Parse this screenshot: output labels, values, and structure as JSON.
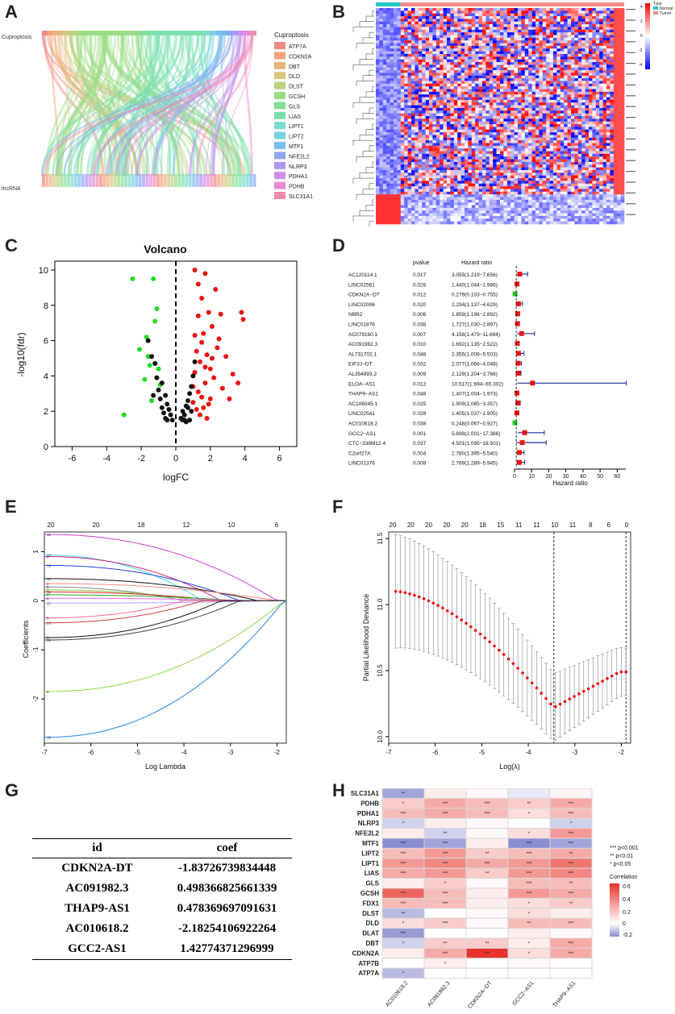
{
  "labels": {
    "A": "A",
    "B": "B",
    "C": "C",
    "D": "D",
    "E": "E",
    "F": "F",
    "G": "G",
    "H": "H"
  },
  "panelA": {
    "top_label": "Cuproptosis",
    "bottom_label": "lncRNA",
    "legend_title": "Cuproptosis",
    "genes": [
      "ATP7A",
      "CDKN2A",
      "DBT",
      "DLD",
      "DLST",
      "GCSH",
      "GLS",
      "LIAS",
      "LIPT1",
      "LIPT2",
      "MTF1",
      "NFE2L2",
      "NLRP3",
      "PDHA1",
      "PDHB",
      "SLC31A1"
    ],
    "colors": [
      "#f08a82",
      "#f3a17a",
      "#e9b47c",
      "#d8c57e",
      "#bdd281",
      "#9bdc86",
      "#83df95",
      "#7be0b0",
      "#7adcc9",
      "#78d0de",
      "#79bdee",
      "#8fa6f6",
      "#ad97f5",
      "#cf8de8",
      "#e88ad5",
      "#f18ab0"
    ]
  },
  "panelB": {
    "legend_title": "Type",
    "types": [
      "Normal",
      "Tumor"
    ],
    "type_colors": [
      "#22c7c9",
      "#f58c8c"
    ],
    "scale_ticks": [
      "4",
      "2",
      "0",
      "-2",
      "-4"
    ]
  },
  "panelC": {
    "chart_data": {
      "type": "scatter",
      "title": "Volcano",
      "xlabel": "logFC",
      "ylabel": "-log10(fdr)",
      "xlim": [
        -7,
        7
      ],
      "ylim": [
        0,
        10.5
      ],
      "x_ticks": [
        "-6",
        "-4",
        "-2",
        "0",
        "2",
        "4",
        "6"
      ],
      "y_ticks": [
        "0",
        "2",
        "4",
        "6",
        "8",
        "10"
      ],
      "series": [
        {
          "name": "down",
          "color": "#22dd22",
          "points": [
            [
              -3,
              1.8
            ],
            [
              -2.5,
              9.5
            ],
            [
              -2.1,
              5.5
            ],
            [
              -1.8,
              3.8
            ],
            [
              -1.7,
              6.2
            ],
            [
              -1.6,
              5.1
            ],
            [
              -1.5,
              4.6
            ],
            [
              -1.4,
              2.6
            ],
            [
              -1.3,
              9.5
            ],
            [
              -1.2,
              7.1
            ],
            [
              -1.1,
              7.8
            ],
            [
              -1.0,
              4.4
            ],
            [
              -0.9,
              3.5
            ]
          ]
        },
        {
          "name": "up",
          "color": "#ee1111",
          "points": [
            [
              1.1,
              10.0
            ],
            [
              1.3,
              9.2
            ],
            [
              1.5,
              8.4
            ],
            [
              1.7,
              9.8
            ],
            [
              1.9,
              7.6
            ],
            [
              2.1,
              6.8
            ],
            [
              2.3,
              8.9
            ],
            [
              2.5,
              6.1
            ],
            [
              1.2,
              5.4
            ],
            [
              1.4,
              4.8
            ],
            [
              1.6,
              6.4
            ],
            [
              1.8,
              5.2
            ],
            [
              2.0,
              4.4
            ],
            [
              2.2,
              3.9
            ],
            [
              2.4,
              5.6
            ],
            [
              1.0,
              3.4
            ],
            [
              1.1,
              4.2
            ],
            [
              1.3,
              3.1
            ],
            [
              1.5,
              2.8
            ],
            [
              1.7,
              3.6
            ],
            [
              1.9,
              2.4
            ],
            [
              1.2,
              2.1
            ],
            [
              1.4,
              1.8
            ],
            [
              1.6,
              2.2
            ],
            [
              1.8,
              1.6
            ],
            [
              2.0,
              2.7
            ],
            [
              1.0,
              2.5
            ],
            [
              2.7,
              3.3
            ],
            [
              3.1,
              2.7
            ],
            [
              3.6,
              3.6
            ],
            [
              3.9,
              7.2
            ],
            [
              2.9,
              5.1
            ],
            [
              3.3,
              4.1
            ],
            [
              2.6,
              7.5
            ],
            [
              3.8,
              7.6
            ],
            [
              1.1,
              6.3
            ],
            [
              1.3,
              7.4
            ],
            [
              1.5,
              5.9
            ],
            [
              1.7,
              4.5
            ],
            [
              2.1,
              5.0
            ]
          ]
        },
        {
          "name": "ns",
          "color": "#111111",
          "points": [
            [
              -1.0,
              3.2
            ],
            [
              -0.9,
              2.7
            ],
            [
              -0.8,
              2.2
            ],
            [
              -0.7,
              1.9
            ],
            [
              -0.6,
              1.6
            ],
            [
              -0.5,
              2.4
            ],
            [
              -0.4,
              2.1
            ],
            [
              -0.3,
              1.8
            ],
            [
              -0.2,
              1.5
            ],
            [
              -1.2,
              4.7
            ],
            [
              -1.1,
              3.9
            ],
            [
              -1.3,
              2.9
            ],
            [
              -0.8,
              3.6
            ],
            [
              -0.6,
              2.9
            ],
            [
              0.3,
              1.6
            ],
            [
              0.4,
              2.0
            ],
            [
              0.5,
              1.8
            ],
            [
              0.6,
              2.3
            ],
            [
              0.7,
              2.6
            ],
            [
              0.8,
              3.0
            ],
            [
              0.9,
              3.4
            ],
            [
              1.0,
              4.0
            ],
            [
              0.8,
              1.5
            ],
            [
              0.9,
              2.0
            ],
            [
              0.6,
              1.4
            ],
            [
              1.1,
              4.8
            ],
            [
              0.5,
              1.5
            ],
            [
              0.7,
              2.2
            ],
            [
              -1.4,
              5.1
            ],
            [
              -1.6,
              6.0
            ],
            [
              -0.5,
              1.5
            ],
            [
              0.4,
              1.5
            ]
          ]
        }
      ]
    }
  },
  "panelD": {
    "headers": {
      "pvalue": "pvalue",
      "hr": "Hazard ratio"
    },
    "xlabel": "Hazard ratio",
    "x_ticks": [
      "0",
      "10",
      "20",
      "30",
      "40",
      "50",
      "60"
    ],
    "chart_data": {
      "type": "forest",
      "rows": [
        {
          "gene": "AC120114.1",
          "p": "0.017",
          "hr_text": "3.055(1.219−7.656)",
          "hr": 3.055,
          "lo": 1.219,
          "hi": 7.656
        },
        {
          "gene": "LINC02561",
          "p": "0.026",
          "hr_text": "1.440(1.044−1.986)",
          "hr": 1.44,
          "lo": 1.044,
          "hi": 1.986
        },
        {
          "gene": "CDKN2A−DT",
          "p": "0.012",
          "hr_text": "0.279(0.103−0.755)",
          "hr": 0.279,
          "lo": 0.103,
          "hi": 0.755
        },
        {
          "gene": "LINC02006",
          "p": "0.020",
          "hr_text": "2.294(1.137−4.629)",
          "hr": 2.294,
          "lo": 1.137,
          "hi": 4.629
        },
        {
          "gene": "NBR2",
          "p": "0.006",
          "hr_text": "1.859(1.196−2.892)",
          "hr": 1.859,
          "lo": 1.196,
          "hi": 2.892
        },
        {
          "gene": "LINC01876",
          "p": "0.038",
          "hr_text": "1.727(1.030−2.897)",
          "hr": 1.727,
          "lo": 1.03,
          "hi": 2.897
        },
        {
          "gene": "AC079160.1",
          "p": "0.007",
          "hr_text": "4.158(1.479−11.694)",
          "hr": 4.158,
          "lo": 1.479,
          "hi": 11.694
        },
        {
          "gene": "AC091982.3",
          "p": "0.010",
          "hr_text": "1.692(1.135−2.522)",
          "hr": 1.692,
          "lo": 1.135,
          "hi": 2.522
        },
        {
          "gene": "AL731702.1",
          "p": "0.048",
          "hr_text": "2.355(1.008−5.503)",
          "hr": 2.355,
          "lo": 1.008,
          "hi": 5.503
        },
        {
          "gene": "EIF3J−DT",
          "p": "0.032",
          "hr_text": "2.077(1.066−4.048)",
          "hr": 2.077,
          "lo": 1.066,
          "hi": 4.048
        },
        {
          "gene": "AL354993.2",
          "p": "0.009",
          "hr_text": "2.129(1.204−3.766)",
          "hr": 2.129,
          "lo": 1.204,
          "hi": 3.766
        },
        {
          "gene": "ELOA−AS1",
          "p": "0.012",
          "hr_text": "10.517(1.694−65.302)",
          "hr": 10.517,
          "lo": 1.694,
          "hi": 65.302
        },
        {
          "gene": "THAP9−AS1",
          "p": "0.048",
          "hr_text": "1.407(1.004−1.973)",
          "hr": 1.407,
          "lo": 1.004,
          "hi": 1.973
        },
        {
          "gene": "AC106045.1",
          "p": "0.025",
          "hr_text": "1.909(1.085−3.357)",
          "hr": 1.909,
          "lo": 1.085,
          "hi": 3.357
        },
        {
          "gene": "LINC02541",
          "p": "0.028",
          "hr_text": "1.405(1.037−1.905)",
          "hr": 1.405,
          "lo": 1.037,
          "hi": 1.905
        },
        {
          "gene": "AC010618.2",
          "p": "0.038",
          "hr_text": "0.248(0.067−0.927)",
          "hr": 0.248,
          "lo": 0.067,
          "hi": 0.927
        },
        {
          "gene": "GCC2−AS1",
          "p": "0.001",
          "hr_text": "5.898(2.001−17.386)",
          "hr": 5.898,
          "lo": 2.001,
          "hi": 17.386
        },
        {
          "gene": "CTC−338M12.4",
          "p": "0.037",
          "hr_text": "4.501(1.095−18.501)",
          "hr": 4.501,
          "lo": 1.095,
          "hi": 18.501
        },
        {
          "gene": "C2orf27A",
          "p": "0.004",
          "hr_text": "2.780(1.395−5.540)",
          "hr": 2.78,
          "lo": 1.395,
          "hi": 5.54
        },
        {
          "gene": "LINC01376",
          "p": "0.009",
          "hr_text": "2.769(1.289−5.945)",
          "hr": 2.769,
          "lo": 1.289,
          "hi": 5.945
        }
      ]
    }
  },
  "panelE": {
    "xlabel": "Log Lambda",
    "ylabel": "Coefficients",
    "top_ticks": [
      "20",
      "20",
      "18",
      "12",
      "10",
      "6"
    ],
    "x_ticks": [
      "-7",
      "-6",
      "-5",
      "-4",
      "-3",
      "-2"
    ],
    "y_ticks": [
      "1",
      "0",
      "-1",
      "-2"
    ],
    "chart_data": {
      "type": "line",
      "xlim": [
        -7,
        -1.8
      ],
      "ylim": [
        -2.9,
        1.4
      ],
      "series": [
        {
          "color": "#cc44cc",
          "start": 1.35
        },
        {
          "color": "#44dddd",
          "start": 0.93
        },
        {
          "color": "#cc2288",
          "start": 0.9
        },
        {
          "color": "#2244dd",
          "start": 0.72
        },
        {
          "color": "#111111",
          "start": 0.45
        },
        {
          "color": "#ff8888",
          "start": 0.35
        },
        {
          "color": "#888888",
          "start": 0.28
        },
        {
          "color": "#88cc44",
          "start": 0.22
        },
        {
          "color": "#dd2222",
          "start": 0.18
        },
        {
          "color": "#22aa22",
          "start": 0.12
        },
        {
          "color": "#ee66ee",
          "start": 0.05
        },
        {
          "color": "#aaaaff",
          "start": -0.05
        },
        {
          "color": "#ff66aa",
          "start": -0.35
        },
        {
          "color": "#cc4444",
          "start": -0.45
        },
        {
          "color": "#111111",
          "start": -0.75
        },
        {
          "color": "#444444",
          "start": -0.8
        },
        {
          "color": "#88dd44",
          "start": -1.85
        },
        {
          "color": "#2288dd",
          "start": -2.78
        }
      ],
      "line_labels": [
        "12",
        "13",
        "4",
        "15",
        "10",
        "2",
        "5",
        "1",
        "16",
        "7",
        "6",
        "17",
        "9",
        "20",
        "3",
        "19",
        "8",
        "18"
      ]
    }
  },
  "panelF": {
    "xlabel": "Log(λ)",
    "ylabel": "Partial Likelihood Deviance",
    "top_ticks": [
      "20",
      "20",
      "20",
      "20",
      "20",
      "18",
      "15",
      "11",
      "11",
      "10",
      "11",
      "8",
      "6",
      "0"
    ],
    "x_ticks": [
      "-7",
      "-6",
      "-5",
      "-4",
      "-3",
      "-2"
    ],
    "y_ticks": [
      "10.0",
      "10.5",
      "11.0",
      "11.5"
    ],
    "chart_data": {
      "type": "errorbar",
      "xlim": [
        -7,
        -1.8
      ],
      "ylim": [
        9.95,
        11.55
      ],
      "vlines": [
        -3.45,
        -1.9
      ]
    }
  },
  "panelG": {
    "headers": {
      "id": "id",
      "coef": "coef"
    },
    "rows": [
      {
        "id": "CDKN2A-DT",
        "coef": "-1.83726739834448"
      },
      {
        "id": "AC091982.3",
        "coef": "0.498366825661339"
      },
      {
        "id": "THAP9-AS1",
        "coef": "0.478369697091631"
      },
      {
        "id": "AC010618.2",
        "coef": "-2.18254106922264"
      },
      {
        "id": "GCC2-AS1",
        "coef": "1.42774371296999"
      }
    ]
  },
  "panelH": {
    "legend": {
      "sig1": "*** p<0.001",
      "sig2": "** p<0.01",
      "sig3": "* p<0.05",
      "title": "Correlation",
      "ticks": [
        "0.6",
        "0.4",
        "0.2",
        "0",
        "-0.2"
      ]
    },
    "chart_data": {
      "type": "heatmap",
      "rows": [
        "SLC31A1",
        "PDHB",
        "PDHA1",
        "NLRP3",
        "NFE2L2",
        "MTF1",
        "LIPT2",
        "LIPT1",
        "LIAS",
        "GLS",
        "GCSH",
        "FDX1",
        "DLST",
        "DLD",
        "DLAT",
        "DBT",
        "CDKN2A",
        "ATP7B",
        "ATP7A"
      ],
      "cols": [
        "AC010618.2",
        "AC091982.3",
        "CDKN2A−DT",
        "GCC2−AS1",
        "THAP9−AS1"
      ],
      "values": [
        [
          -0.2,
          0.05,
          0.02,
          -0.05,
          0.03
        ],
        [
          0.15,
          0.25,
          0.2,
          0.15,
          0.25
        ],
        [
          0.2,
          0.25,
          0.2,
          0.1,
          0.2
        ],
        [
          -0.1,
          0.05,
          0.02,
          0.0,
          -0.1
        ],
        [
          0.05,
          -0.1,
          0.02,
          0.1,
          0.3
        ],
        [
          -0.25,
          -0.2,
          0.05,
          -0.25,
          -0.2
        ],
        [
          0.2,
          0.3,
          0.15,
          0.2,
          0.25
        ],
        [
          0.3,
          0.35,
          0.25,
          0.3,
          0.4
        ],
        [
          0.25,
          0.3,
          0.15,
          0.3,
          0.35
        ],
        [
          0.05,
          0.15,
          0.02,
          0.2,
          0.2
        ],
        [
          0.45,
          0.2,
          0.05,
          0.3,
          0.25
        ],
        [
          0.2,
          0.2,
          0.05,
          0.1,
          0.15
        ],
        [
          -0.15,
          0.0,
          0.02,
          0.1,
          0.05
        ],
        [
          0.1,
          0.15,
          0.02,
          0.2,
          0.2
        ],
        [
          -0.22,
          0.0,
          0.0,
          0.05,
          0.02
        ],
        [
          -0.1,
          0.15,
          0.15,
          0.05,
          0.25
        ],
        [
          0.05,
          0.25,
          0.6,
          0.1,
          0.25
        ],
        [
          0.0,
          0.05,
          0.0,
          0.02,
          0.0
        ],
        [
          -0.15,
          0.0,
          0.0,
          0.0,
          0.0
        ]
      ],
      "stars": [
        [
          "**",
          "",
          "",
          "",
          ""
        ],
        [
          "*",
          "***",
          "***",
          "**",
          "***"
        ],
        [
          "***",
          "***",
          "***",
          "*",
          "***"
        ],
        [
          "*",
          "",
          "",
          "",
          "*"
        ],
        [
          "",
          "**",
          "",
          "*",
          "***"
        ],
        [
          "***",
          "***",
          "",
          "***",
          "***"
        ],
        [
          "***",
          "***",
          "**",
          "***",
          "**"
        ],
        [
          "***",
          "***",
          "***",
          "***",
          "***"
        ],
        [
          "***",
          "***",
          "**",
          "***",
          "***"
        ],
        [
          "",
          "*",
          "",
          "***",
          "**"
        ],
        [
          "***",
          "***",
          "",
          "***",
          "***"
        ],
        [
          "***",
          "***",
          "",
          "*",
          "**"
        ],
        [
          "**",
          "",
          "",
          "*",
          ""
        ],
        [
          "*",
          "***",
          "",
          "**",
          "***"
        ],
        [
          "***",
          "",
          "",
          "",
          ""
        ],
        [
          "*",
          "**",
          "**",
          "*",
          "***"
        ],
        [
          "",
          "***",
          "***",
          "*",
          "***"
        ],
        [
          "",
          "*",
          "",
          "",
          ""
        ],
        [
          "*",
          "",
          "",
          "",
          ""
        ]
      ]
    }
  }
}
